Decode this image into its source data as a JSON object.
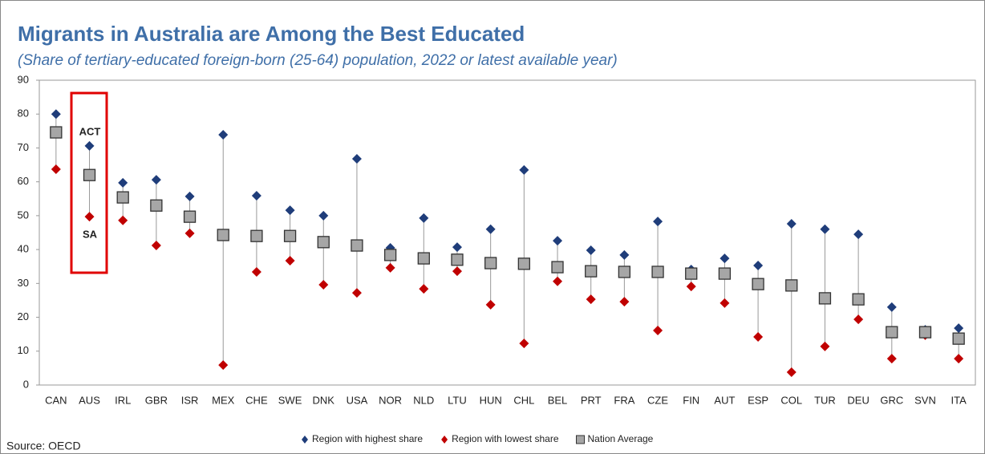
{
  "chart_data": {
    "type": "range_dot",
    "title": "Migrants in Australia are Among the Best Educated",
    "subtitle": "(Share of tertiary-educated foreign-born (25-64) population, 2022 or latest available year)",
    "source": "Source: OECD",
    "annotations": [
      "ACT",
      "SA"
    ],
    "categories": [
      "CAN",
      "AUS",
      "IRL",
      "GBR",
      "ISR",
      "MEX",
      "CHE",
      "SWE",
      "DNK",
      "USA",
      "NOR",
      "NLD",
      "LTU",
      "HUN",
      "CHL",
      "BEL",
      "PRT",
      "FRA",
      "CZE",
      "FIN",
      "AUT",
      "ESP",
      "COL",
      "TUR",
      "DEU",
      "GRC",
      "SVN",
      "ITA"
    ],
    "series": [
      {
        "name": "Region with highest share",
        "color": "#1f3d7a",
        "marker": "diamond",
        "values": [
          80,
          70.6,
          59.7,
          60.6,
          55.7,
          73.9,
          55.9,
          51.6,
          50,
          66.8,
          40.5,
          49.3,
          40.7,
          46,
          63.5,
          42.6,
          39.8,
          38.4,
          48.3,
          34.1,
          37.4,
          35.3,
          47.6,
          46,
          44.5,
          23,
          16.3,
          16.8
        ]
      },
      {
        "name": "Region with lowest share",
        "color": "#c00000",
        "marker": "diamond",
        "values": [
          63.7,
          49.7,
          48.6,
          41.2,
          44.8,
          5.9,
          33.4,
          36.7,
          29.6,
          27.2,
          34.6,
          28.4,
          33.6,
          23.7,
          12.3,
          30.6,
          25.3,
          24.6,
          16.1,
          29.1,
          24.2,
          14.2,
          3.8,
          11.4,
          19.4,
          7.8,
          14.7,
          7.8
        ]
      },
      {
        "name": "Nation Average",
        "color": "#a6a6a6",
        "marker": "square",
        "values": [
          74.6,
          62,
          55.4,
          53,
          49.7,
          44.3,
          44,
          44,
          42.2,
          41.2,
          38.4,
          37.4,
          37,
          36,
          35.8,
          34.8,
          33.6,
          33.4,
          33.4,
          32.9,
          32.9,
          29.8,
          29.4,
          25.6,
          25.3,
          15.6,
          15.6,
          13.7
        ]
      }
    ],
    "ylim": [
      0,
      90
    ],
    "yticks": [
      0,
      10,
      20,
      30,
      40,
      50,
      60,
      70,
      80,
      90
    ],
    "grid": false
  }
}
